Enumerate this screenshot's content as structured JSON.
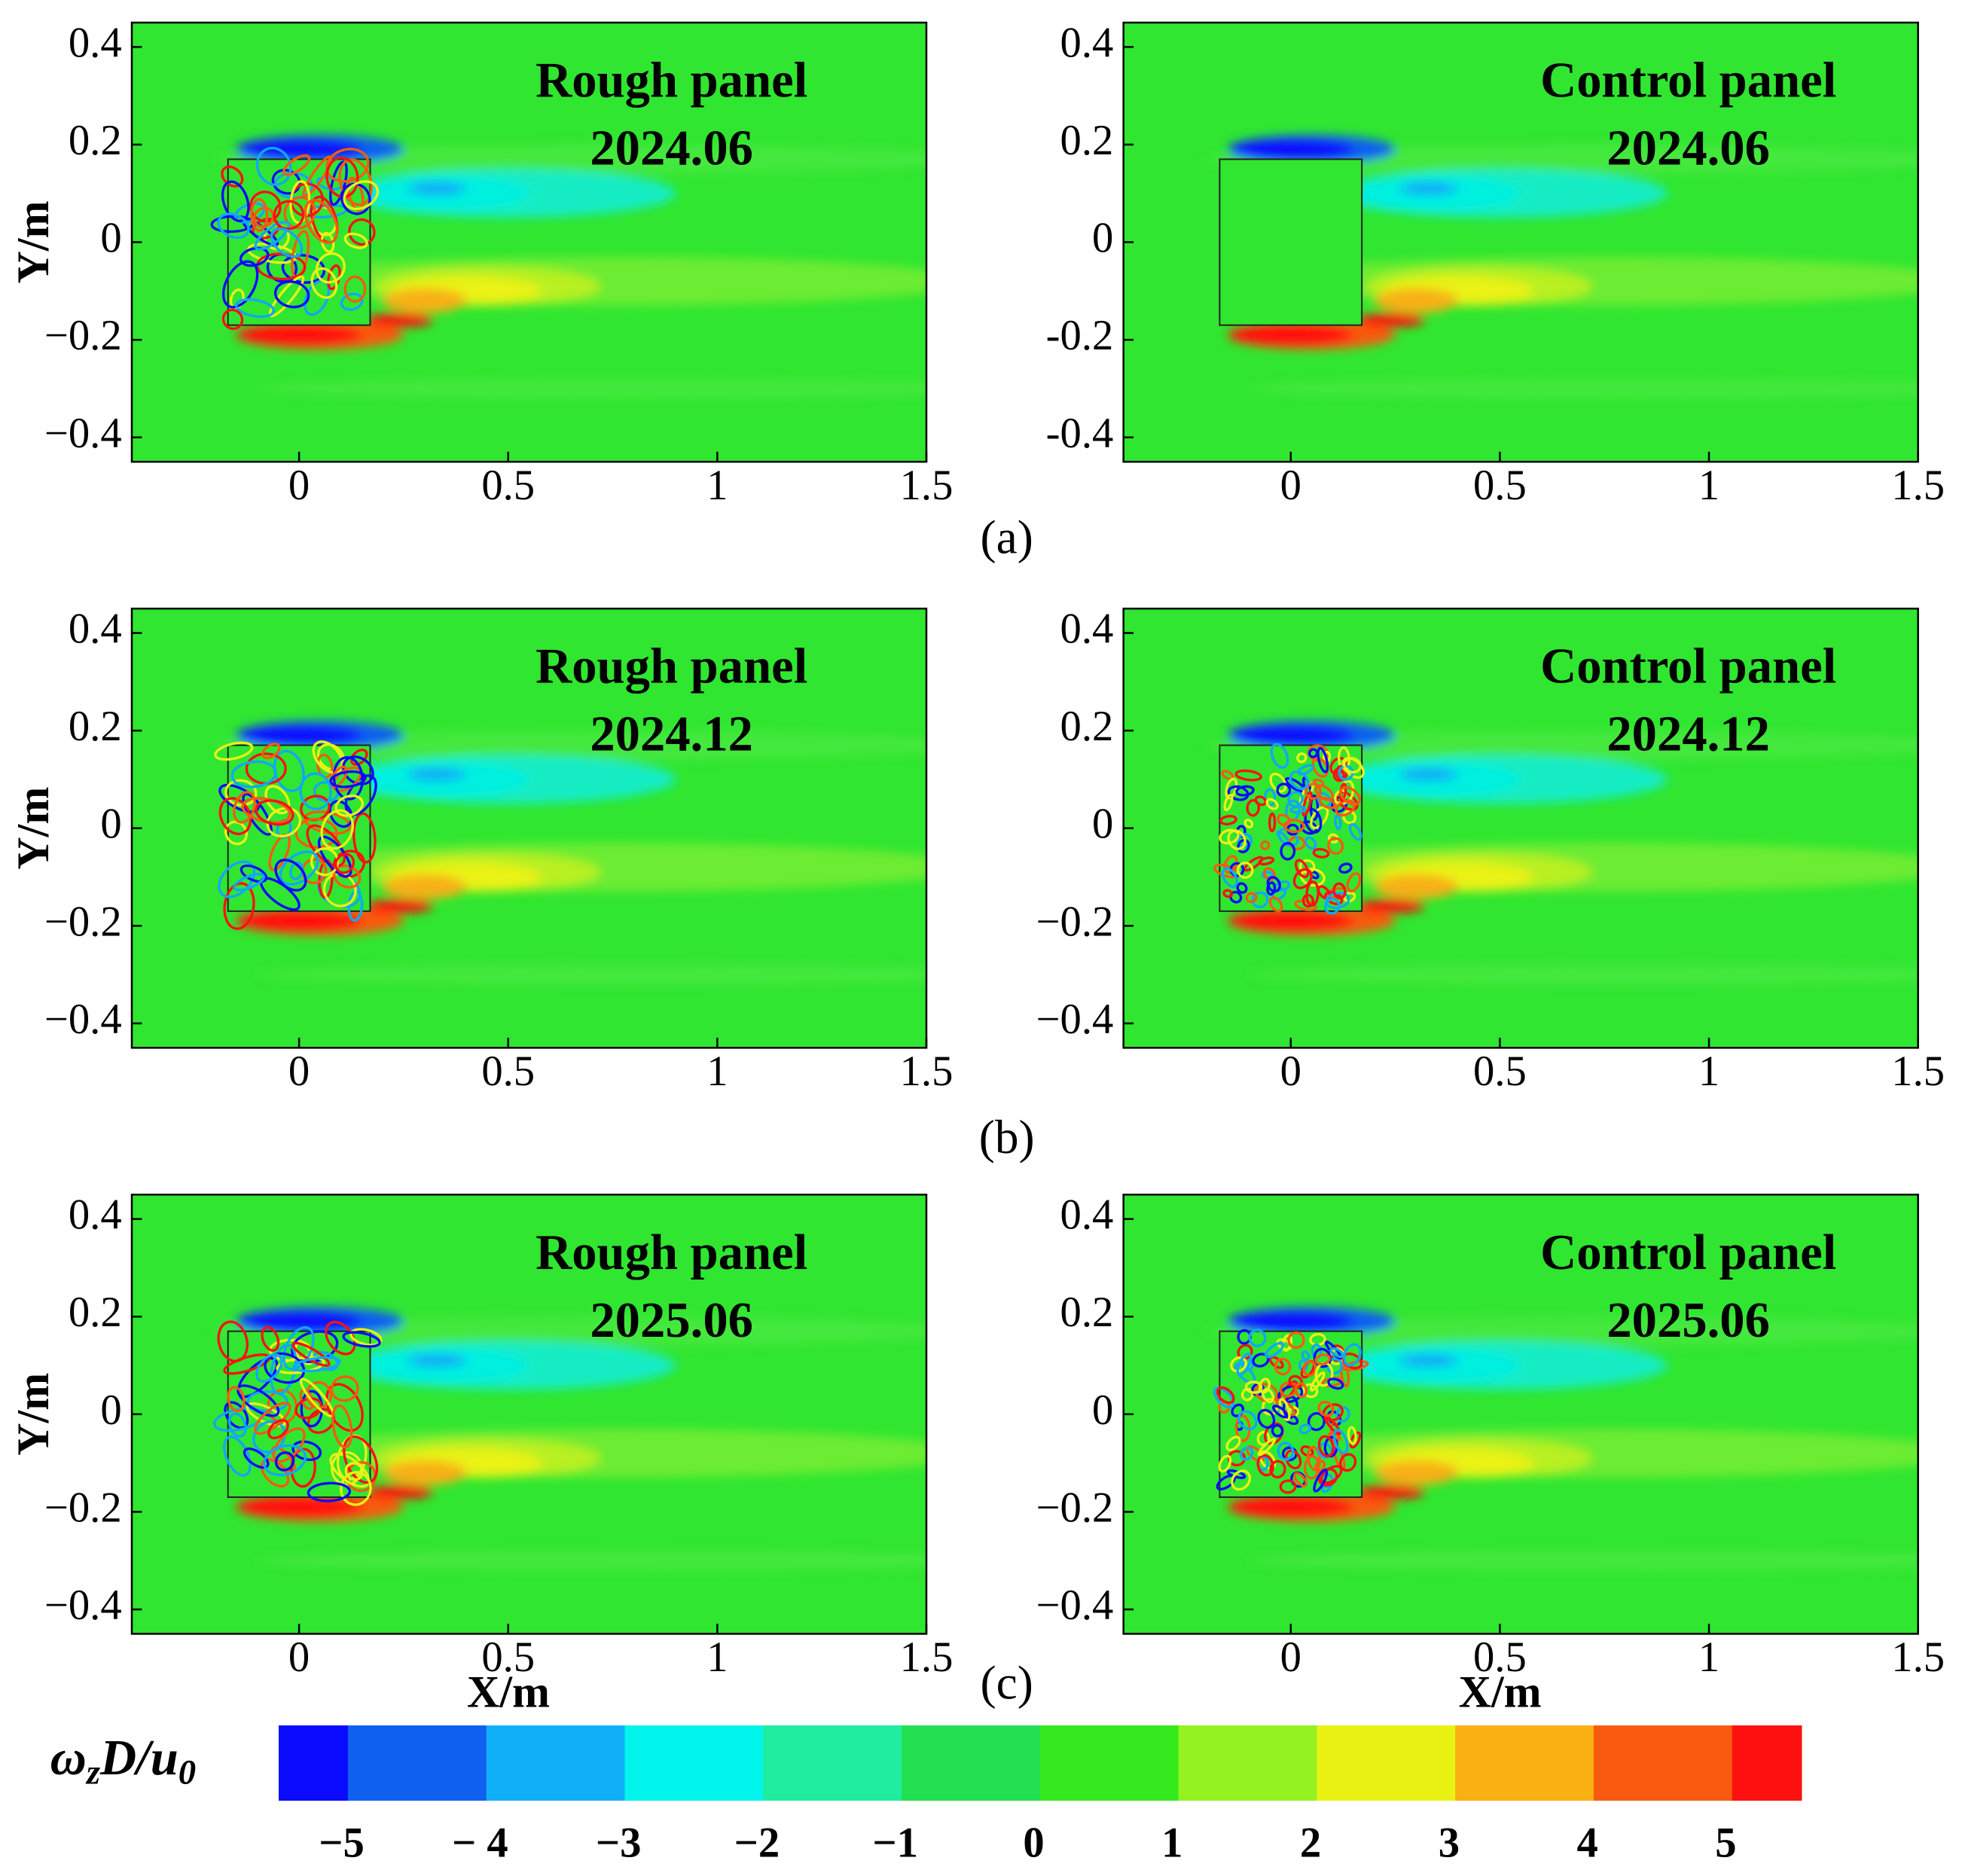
{
  "chart_data": [
    {
      "type": "contour",
      "title": "Rough panel",
      "subtitle": "2024.06",
      "ylabel": "Y/m",
      "xlim": [
        -0.4,
        1.5
      ],
      "ylim": [
        -0.45,
        0.45
      ],
      "xticks": [
        0,
        0.5,
        1,
        1.5
      ],
      "yticks": [
        {
          "value": -0.4,
          "label": "−0.4"
        },
        {
          "value": -0.2,
          "label": "−0.2"
        },
        0,
        0.2,
        0.4
      ]
    },
    {
      "type": "contour",
      "title": "Control panel",
      "subtitle": "2024.06",
      "xlim": [
        -0.4,
        1.5
      ],
      "ylim": [
        -0.45,
        0.45
      ],
      "xticks": [
        0,
        0.5,
        1,
        1.5
      ],
      "yticks": [
        {
          "value": -0.4,
          "label": "-0.4"
        },
        {
          "value": -0.2,
          "label": "-0.2"
        },
        0,
        0.2,
        0.4
      ]
    },
    {
      "type": "contour",
      "title": "Rough panel",
      "subtitle": "2024.12",
      "ylabel": "Y/m",
      "xlim": [
        -0.4,
        1.5
      ],
      "ylim": [
        -0.45,
        0.45
      ],
      "xticks": [
        0,
        0.5,
        1,
        1.5
      ],
      "yticks": [
        {
          "value": -0.4,
          "label": "−0.4"
        },
        {
          "value": -0.2,
          "label": "−0.2"
        },
        0,
        0.2,
        0.4
      ]
    },
    {
      "type": "contour",
      "title": "Control panel",
      "subtitle": "2024.12",
      "xlim": [
        -0.4,
        1.5
      ],
      "ylim": [
        -0.45,
        0.45
      ],
      "xticks": [
        0,
        0.5,
        1,
        1.5
      ],
      "yticks": [
        {
          "value": -0.4,
          "label": "−0.4"
        },
        {
          "value": -0.2,
          "label": "−0.2"
        },
        0,
        0.2,
        0.4
      ]
    },
    {
      "type": "contour",
      "title": "Rough panel",
      "subtitle": "2025.06",
      "ylabel": "Y/m",
      "xlabel": "X/m",
      "xlim": [
        -0.4,
        1.5
      ],
      "ylim": [
        -0.45,
        0.45
      ],
      "xticks": [
        0,
        0.5,
        1,
        1.5
      ],
      "yticks": [
        {
          "value": -0.4,
          "label": "−0.4"
        },
        {
          "value": -0.2,
          "label": "−0.2"
        },
        0,
        0.2,
        0.4
      ]
    },
    {
      "type": "contour",
      "title": "Control panel",
      "subtitle": "2025.06",
      "xlabel": "X/m",
      "xlim": [
        -0.4,
        1.5
      ],
      "ylim": [
        -0.45,
        0.45
      ],
      "xticks": [
        0,
        0.5,
        1,
        1.5
      ],
      "yticks": [
        {
          "value": -0.4,
          "label": "−0.4"
        },
        {
          "value": -0.2,
          "label": "−0.2"
        },
        0,
        0.2,
        0.4
      ]
    }
  ],
  "captions": [
    "(a)",
    "(b)",
    "(c)"
  ],
  "colorbar": {
    "label_parts": [
      "ω",
      "z",
      "D/u",
      "0"
    ],
    "lim": [
      -5.5,
      5.5
    ],
    "boundaries": [
      -5,
      -4,
      -3,
      -2,
      -1,
      0,
      1,
      2,
      3,
      4,
      5
    ],
    "colors": [
      "#0a0aff",
      "#1060f0",
      "#10b0f8",
      "#00f4ec",
      "#20eca0",
      "#22e052",
      "#34ea1e",
      "#94f220",
      "#eaf214",
      "#f8b012",
      "#f85a10",
      "#ff1010"
    ],
    "ticks": [
      {
        "value": -5,
        "label": "−5"
      },
      {
        "value": -4,
        "label": "− 4"
      },
      {
        "value": -3,
        "label": "−3"
      },
      {
        "value": -2,
        "label": "−2"
      },
      {
        "value": -1,
        "label": "−1"
      },
      0,
      1,
      2,
      3,
      4,
      5
    ]
  }
}
